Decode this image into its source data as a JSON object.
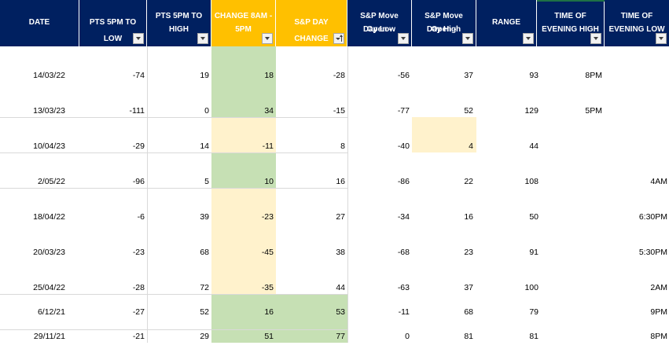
{
  "columns": [
    {
      "key": "date",
      "label": "DATE",
      "lines": 1
    },
    {
      "key": "pts_low",
      "label": "PTS 5PM TO LOW",
      "lines": 1
    },
    {
      "key": "pts_high",
      "label": "PTS 5PM TO HIGH",
      "lines": 2
    },
    {
      "key": "change",
      "label": "CHANGE 8AM - 5PM",
      "lines": 2
    },
    {
      "key": "sp_day",
      "label": "S&P DAY CHANGE",
      "lines": 1
    },
    {
      "key": "sp_low",
      "label": "S&P Move Open - Day Low",
      "lines": 2
    },
    {
      "key": "sp_high",
      "label": "S&P Move Open - Day High",
      "lines": 2
    },
    {
      "key": "range",
      "label": "RANGE",
      "lines": 1
    },
    {
      "key": "t_high",
      "label": "TIME OF EVENING HIGH",
      "lines": 2
    },
    {
      "key": "t_low",
      "label": "TIME OF EVENING LOW",
      "lines": 2
    }
  ],
  "header_lines": {
    "pts_high": [
      "PTS 5PM TO",
      "HIGH"
    ],
    "change": [
      "CHANGE 8AM -",
      "5PM"
    ],
    "sp_low": [
      "S&P Move Open -",
      "Day Low"
    ],
    "sp_high": [
      "S&P Move Open -",
      "Day High"
    ],
    "t_high": [
      "TIME OF",
      "EVENING HIGH"
    ],
    "t_low": [
      "TIME OF",
      "EVENING LOW"
    ]
  },
  "colors": {
    "header_bg": "#002060",
    "header_highlight": "#ffc000",
    "green_fill": "#c6e0b4",
    "yellow_fill": "#fff2cc"
  },
  "sort": {
    "column": "sp_day",
    "direction": "ascending",
    "icon": "sort-ascending-filter-icon"
  },
  "rows": [
    {
      "date": "14/03/22",
      "pts_low": "-74",
      "pts_high": "19",
      "change": "18",
      "sp_day": "-28",
      "sp_low": "-56",
      "sp_high": "37",
      "range": "93",
      "t_high": "8PM",
      "t_low": ""
    },
    {
      "date": "13/03/23",
      "pts_low": "-111",
      "pts_high": "0",
      "change": "34",
      "sp_day": "-15",
      "sp_low": "-77",
      "sp_high": "52",
      "range": "129",
      "t_high": "5PM",
      "t_low": ""
    },
    {
      "date": "10/04/23",
      "pts_low": "-29",
      "pts_high": "14",
      "change": "-11",
      "sp_day": "8",
      "sp_low": "-40",
      "sp_high": "4",
      "range": "44",
      "t_high": "",
      "t_low": ""
    },
    {
      "date": "2/05/22",
      "pts_low": "-96",
      "pts_high": "5",
      "change": "10",
      "sp_day": "16",
      "sp_low": "-86",
      "sp_high": "22",
      "range": "108",
      "t_high": "",
      "t_low": "4AM"
    },
    {
      "date": "18/04/22",
      "pts_low": "-6",
      "pts_high": "39",
      "change": "-23",
      "sp_day": "27",
      "sp_low": "-34",
      "sp_high": "16",
      "range": "50",
      "t_high": "",
      "t_low": "6:30PM"
    },
    {
      "date": "20/03/23",
      "pts_low": "-23",
      "pts_high": "68",
      "change": "-45",
      "sp_day": "38",
      "sp_low": "-68",
      "sp_high": "23",
      "range": "91",
      "t_high": "",
      "t_low": "5:30PM"
    },
    {
      "date": "25/04/22",
      "pts_low": "-28",
      "pts_high": "72",
      "change": "-35",
      "sp_day": "44",
      "sp_low": "-63",
      "sp_high": "37",
      "range": "100",
      "t_high": "",
      "t_low": "2AM"
    },
    {
      "date": "6/12/21",
      "pts_low": "-27",
      "pts_high": "52",
      "change": "16",
      "sp_day": "53",
      "sp_low": "-11",
      "sp_high": "68",
      "range": "79",
      "t_high": "",
      "t_low": "9PM"
    },
    {
      "date": "29/11/21",
      "pts_low": "-21",
      "pts_high": "29",
      "change": "51",
      "sp_day": "77",
      "sp_low": "0",
      "sp_high": "81",
      "range": "81",
      "t_high": "",
      "t_low": "8PM"
    }
  ]
}
